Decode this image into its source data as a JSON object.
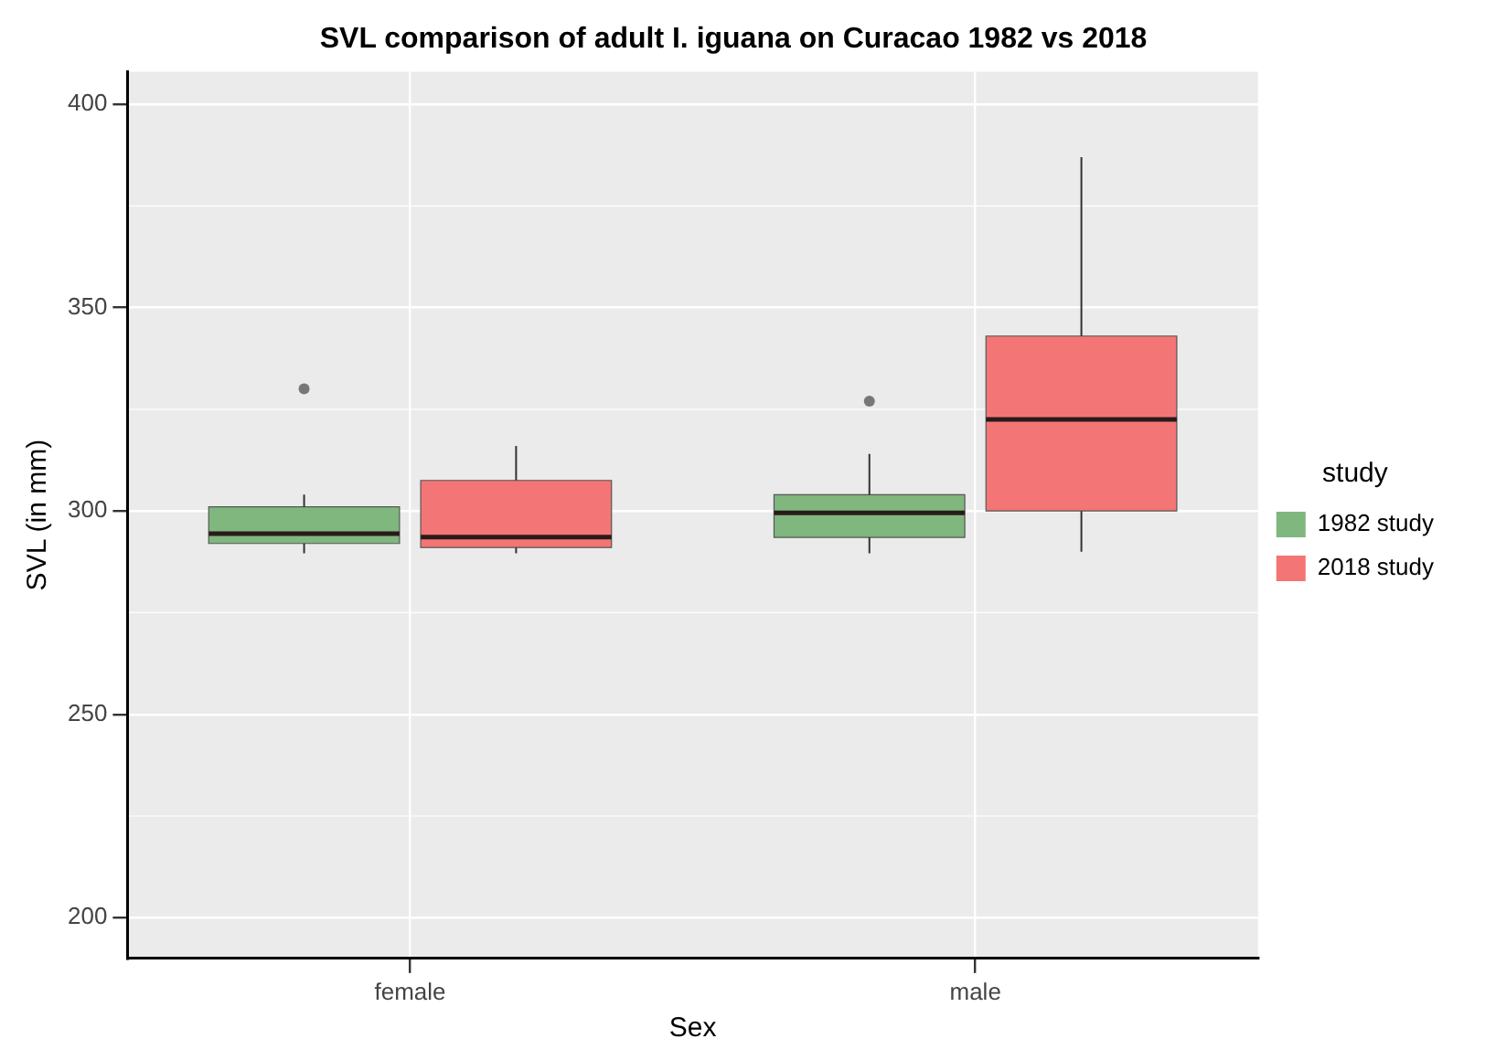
{
  "chart_data": {
    "type": "box",
    "title": "SVL comparison of adult I. iguana on Curacao 1982 vs 2018",
    "xlabel": "Sex",
    "ylabel": "SVL (in mm)",
    "legend_title": "study",
    "legend": "right",
    "grid": true,
    "categories": [
      "female",
      "male"
    ],
    "ylim": [
      190,
      408
    ],
    "yticks": [
      200,
      250,
      300,
      350,
      400
    ],
    "series": [
      {
        "name": "1982 study",
        "color": "#7fb77e",
        "boxes": [
          {
            "low": 289.6,
            "q1": 292,
            "median": 294.4,
            "q3": 301,
            "high": 304,
            "outliers": [
              330
            ]
          },
          {
            "low": 289.6,
            "q1": 293.5,
            "median": 299.5,
            "q3": 304,
            "high": 314,
            "outliers": [
              327
            ]
          }
        ]
      },
      {
        "name": "2018 study",
        "color": "#f47575",
        "boxes": [
          {
            "low": 289.6,
            "q1": 291,
            "median": 293.6,
            "q3": 307.5,
            "high": 316
          },
          {
            "low": 290,
            "q1": 300,
            "median": 322.5,
            "q3": 343,
            "high": 387
          }
        ]
      }
    ]
  }
}
